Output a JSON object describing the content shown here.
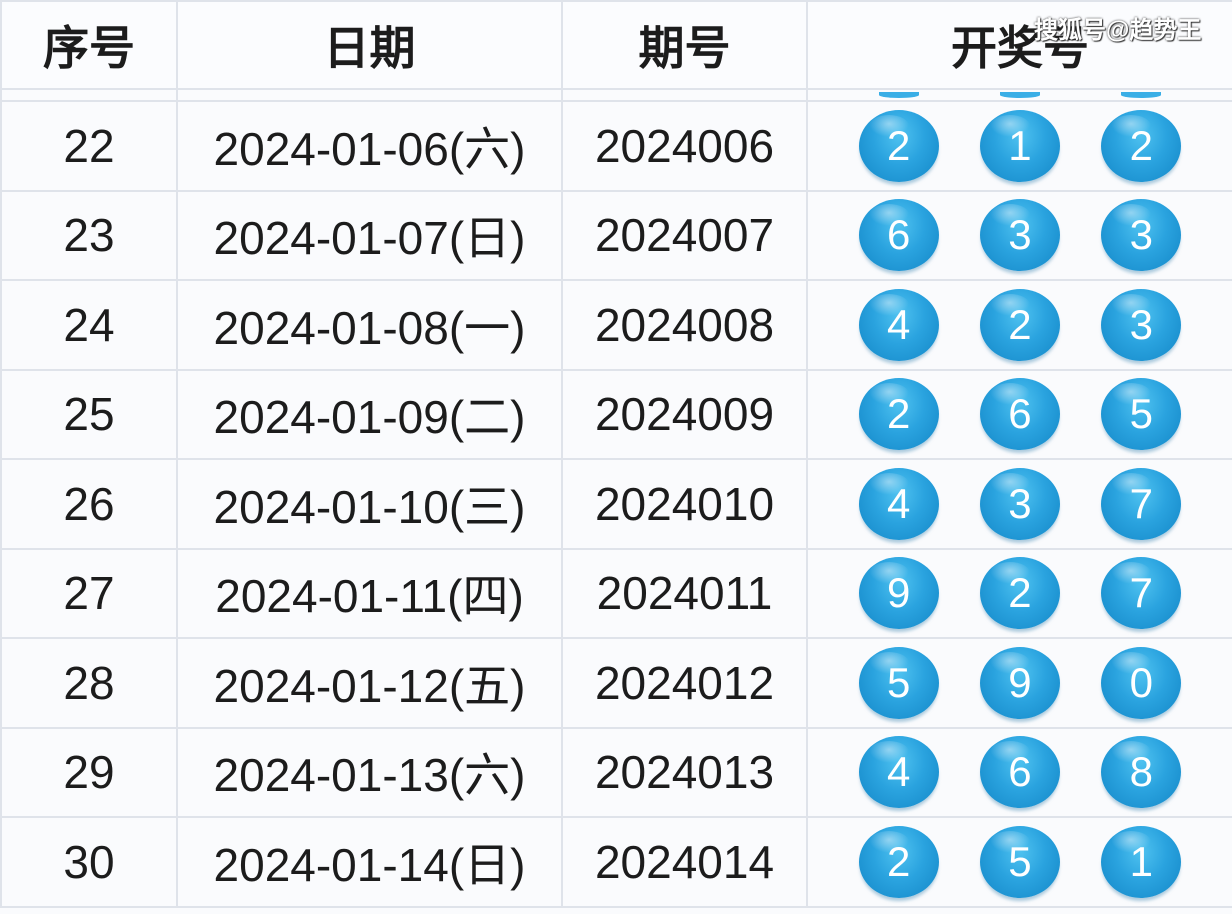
{
  "watermark": "搜狐号@趋势王",
  "headers": [
    "序号",
    "日期",
    "期号",
    "开奖号"
  ],
  "ball_color": "#2aa3df",
  "rows": [
    {
      "seq": "22",
      "date": "2024-01-06(六)",
      "issue": "2024006",
      "nums": [
        "2",
        "1",
        "2"
      ]
    },
    {
      "seq": "23",
      "date": "2024-01-07(日)",
      "issue": "2024007",
      "nums": [
        "6",
        "3",
        "3"
      ]
    },
    {
      "seq": "24",
      "date": "2024-01-08(一)",
      "issue": "2024008",
      "nums": [
        "4",
        "2",
        "3"
      ]
    },
    {
      "seq": "25",
      "date": "2024-01-09(二)",
      "issue": "2024009",
      "nums": [
        "2",
        "6",
        "5"
      ]
    },
    {
      "seq": "26",
      "date": "2024-01-10(三)",
      "issue": "2024010",
      "nums": [
        "4",
        "3",
        "7"
      ]
    },
    {
      "seq": "27",
      "date": "2024-01-11(四)",
      "issue": "2024011",
      "nums": [
        "9",
        "2",
        "7"
      ]
    },
    {
      "seq": "28",
      "date": "2024-01-12(五)",
      "issue": "2024012",
      "nums": [
        "5",
        "9",
        "0"
      ]
    },
    {
      "seq": "29",
      "date": "2024-01-13(六)",
      "issue": "2024013",
      "nums": [
        "4",
        "6",
        "8"
      ]
    },
    {
      "seq": "30",
      "date": "2024-01-14(日)",
      "issue": "2024014",
      "nums": [
        "2",
        "5",
        "1"
      ]
    }
  ]
}
